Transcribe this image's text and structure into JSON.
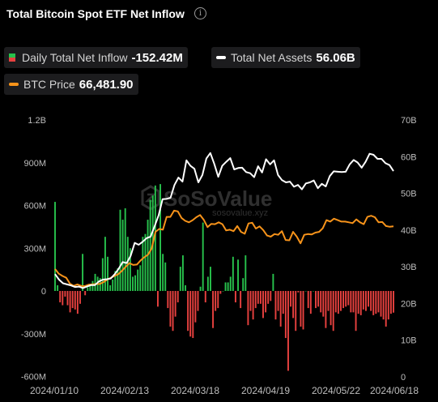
{
  "header": {
    "title": "Total Bitcoin Spot ETF Net Inflow",
    "info_icon": "info-icon"
  },
  "legend": {
    "inflow": {
      "label": "Daily Total Net Inflow",
      "value": "-152.42M",
      "colors": [
        "#27c24c",
        "#e8413f"
      ]
    },
    "assets": {
      "label": "Total Net Assets",
      "value": "56.06B",
      "color": "#ffffff"
    },
    "price": {
      "label": "BTC Price",
      "value": "66,481.90",
      "color": "#f7931a"
    }
  },
  "watermark": {
    "text": "SoSoValue",
    "url": "sosovalue.xyz"
  },
  "chart_data": {
    "type": "bar+line",
    "title": "Total Bitcoin Spot ETF Net Inflow",
    "x_ticks": [
      "2024/01/10",
      "2024/02/13",
      "2024/03/18",
      "2024/04/19",
      "2024/05/22",
      "2024/06/18"
    ],
    "y_left": {
      "ticks": [
        "1.2B",
        "900M",
        "600M",
        "300M",
        "0",
        "-300M",
        "-600M"
      ],
      "range": [
        -600,
        1200
      ],
      "unit": "M"
    },
    "y_right": {
      "ticks": [
        "70B",
        "60B",
        "50B",
        "40B",
        "30B",
        "20B",
        "10B",
        "0"
      ],
      "range": [
        0,
        70
      ],
      "unit": "B"
    },
    "series": [
      {
        "name": "Daily Total Net Inflow",
        "type": "bar",
        "unit": "M",
        "values": [
          625,
          40,
          -80,
          -100,
          -40,
          -100,
          -150,
          -120,
          -130,
          -160,
          -90,
          260,
          -30,
          25,
          50,
          70,
          120,
          100,
          90,
          230,
          380,
          240,
          40,
          80,
          140,
          160,
          570,
          500,
          580,
          380,
          300,
          100,
          110,
          150,
          180,
          380,
          400,
          500,
          640,
          670,
          740,
          -110,
          750,
          260,
          200,
          -120,
          -250,
          -280,
          -180,
          -80,
          170,
          250,
          40,
          -280,
          -320,
          -330,
          -220,
          -140,
          30,
          480,
          -80,
          100,
          170,
          -260,
          -140,
          -120,
          -20,
          0,
          60,
          60,
          100,
          240,
          -80,
          220,
          -120,
          90,
          250,
          -240,
          -140,
          -200,
          -120,
          -90,
          -90,
          -190,
          -150,
          -90,
          -70,
          120,
          -200,
          -140,
          -250,
          -160,
          -330,
          -560,
          -110,
          -190,
          -280,
          -10,
          -250,
          -270,
          0,
          -120,
          -160,
          0,
          -120,
          -110,
          -150,
          -180,
          -260,
          -140,
          -240,
          -280,
          -150,
          -160,
          -140,
          -120,
          -110,
          -100,
          -150,
          -150,
          -280,
          -160,
          -170,
          -130,
          -140,
          -110,
          -140,
          -170,
          -160,
          -150,
          -180,
          -200,
          -250,
          -200,
          -160,
          -152
        ]
      },
      {
        "name": "Total Net Assets",
        "type": "line",
        "unit": "B",
        "values": [
          28.0,
          26.5,
          25.5,
          25.2,
          24.9,
          24.5,
          24.6,
          24.2,
          24.6,
          25.0,
          25.0,
          26.0,
          26.5,
          26.6,
          26.8,
          28.0,
          29.5,
          31.3,
          31.0,
          33.0,
          36.5,
          36.0,
          36.8,
          37.8,
          38.2,
          41.0,
          44.0,
          48.4,
          48.5,
          48.8,
          52.3,
          54.3,
          53.2,
          59.0,
          57.5,
          56.7,
          53.0,
          55.0,
          59.5,
          61.0,
          58.0,
          54.5,
          57.5,
          58.6,
          59.6,
          56.5,
          56.9,
          57.0,
          55.8,
          55.5,
          54.4,
          57.4,
          55.7,
          59.3,
          57.9,
          59.0,
          55.0,
          53.6,
          53.0,
          53.2,
          51.8,
          52.3,
          51.1,
          52.7,
          53.0,
          53.5,
          51.4,
          52.6,
          51.9,
          54.7,
          56.0,
          55.9,
          55.8,
          55.9,
          57.9,
          59.1,
          58.4,
          57.0,
          58.6,
          60.8,
          60.5,
          59.4,
          59.4,
          58.2,
          57.7,
          56.06
        ]
      },
      {
        "name": "BTC Price",
        "type": "line",
        "unit": "B-axis",
        "values": [
          29.4,
          28.1,
          27.5,
          27.0,
          25.4,
          24.8,
          25.2,
          24.8,
          24.7,
          25.1,
          25.2,
          25.3,
          25.3,
          25.8,
          26.5,
          27.0,
          27.5,
          28.0,
          28.9,
          30.0,
          31.0,
          30.5,
          30.6,
          31.7,
          32.6,
          33.3,
          35.0,
          39.5,
          40.3,
          40.1,
          43.6,
          43.6,
          45.3,
          45.1,
          43.3,
          42.5,
          42.1,
          42.7,
          43.5,
          44.1,
          42.8,
          40.8,
          41.7,
          41.6,
          42.1,
          41.6,
          39.9,
          40.1,
          39.7,
          41.1,
          39.5,
          39.0,
          41.8,
          42.0,
          40.4,
          41.0,
          40.0,
          38.5,
          38.2,
          38.9,
          38.7,
          39.7,
          37.3,
          37.2,
          39.5,
          38.2,
          36.4,
          38.7,
          38.9,
          38.8,
          39.3,
          39.5,
          40.5,
          42.7,
          42.3,
          43.1,
          42.7,
          42.3,
          42.3,
          42.1,
          41.9,
          42.9,
          42.1,
          41.6,
          43.6,
          43.9,
          43.5,
          42.1,
          42.2,
          41.1,
          40.9,
          41.0
        ]
      }
    ],
    "grid": false,
    "legend_position": "top"
  }
}
